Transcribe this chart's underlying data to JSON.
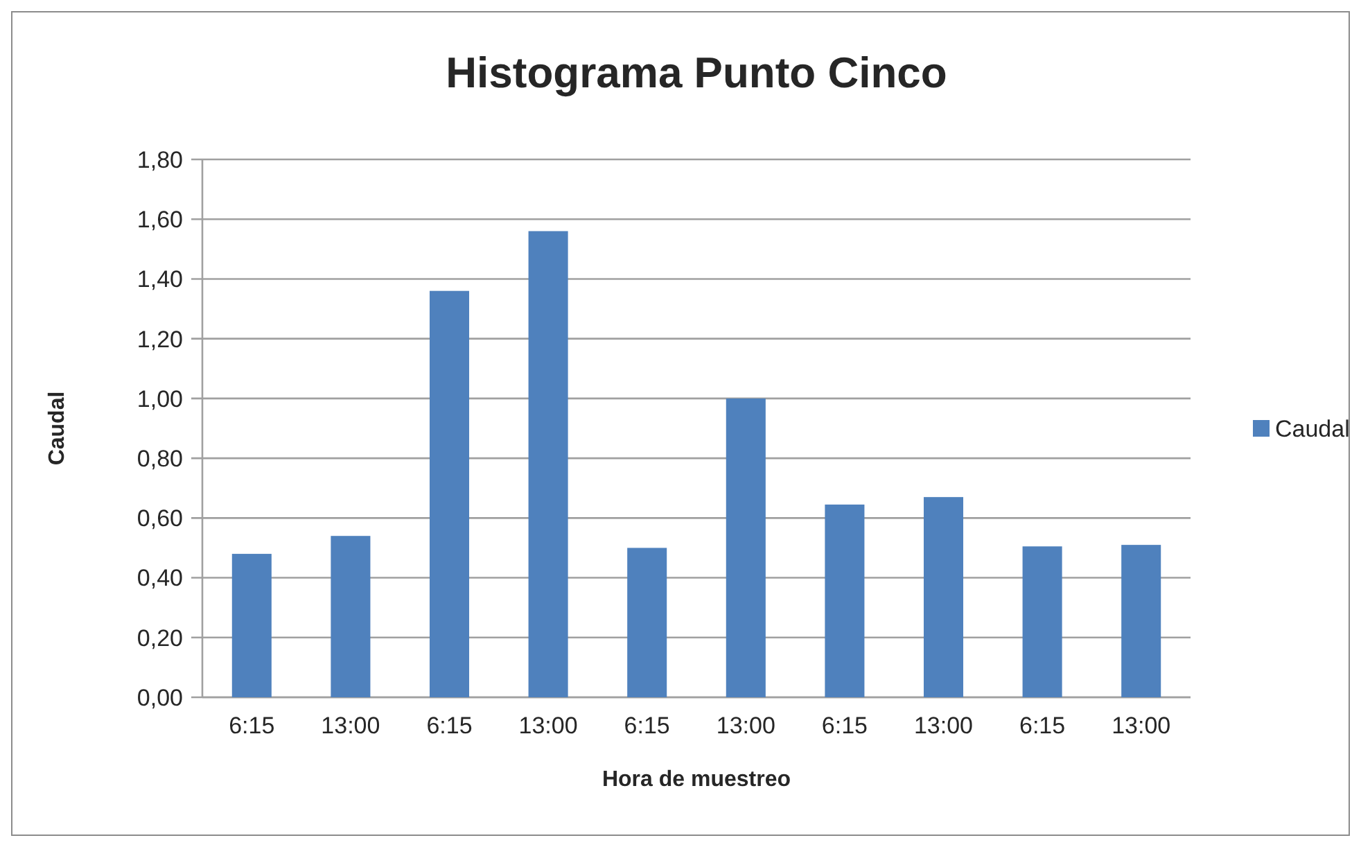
{
  "chart_data": {
    "type": "bar",
    "title": "Histograma Punto Cinco",
    "xlabel": "Hora de muestreo",
    "ylabel": "Caudal",
    "categories": [
      "6:15",
      "13:00",
      "6:15",
      "13:00",
      "6:15",
      "13:00",
      "6:15",
      "13:00",
      "6:15",
      "13:00"
    ],
    "series": [
      {
        "name": "Caudal",
        "color": "#4f81bd",
        "values": [
          0.48,
          0.54,
          1.36,
          1.56,
          0.5,
          1.0,
          0.645,
          0.67,
          0.505,
          0.51
        ]
      }
    ],
    "ylim": [
      0,
      1.8
    ],
    "yticks": [
      {
        "value": 0,
        "label": "0,00"
      },
      {
        "value": 0.2,
        "label": "0,20"
      },
      {
        "value": 0.4,
        "label": "0,40"
      },
      {
        "value": 0.6,
        "label": "0,60"
      },
      {
        "value": 0.8,
        "label": "0,80"
      },
      {
        "value": 1.0,
        "label": "1,00"
      },
      {
        "value": 1.2,
        "label": "1,20"
      },
      {
        "value": 1.4,
        "label": "1,40"
      },
      {
        "value": 1.6,
        "label": "1,60"
      },
      {
        "value": 1.8,
        "label": "1,80"
      }
    ],
    "grid": "y",
    "legend": "right"
  }
}
